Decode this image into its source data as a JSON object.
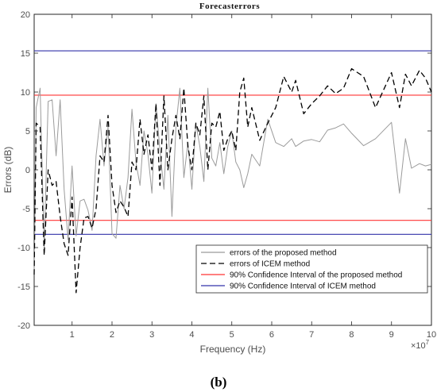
{
  "chart_data": {
    "type": "line",
    "title": "Forecasterrors",
    "xlabel": "Frequency (Hz)",
    "ylabel": "Errors (dB)",
    "x_exponent_label": "×10",
    "x_exponent_power": "7",
    "panel_label": "(b)",
    "xlim": [
      0.05,
      10
    ],
    "ylim": [
      -20,
      20
    ],
    "x_ticks": [
      1,
      2,
      3,
      4,
      5,
      6,
      7,
      8,
      9,
      10
    ],
    "x_tick_labels": [
      "1",
      "2",
      "3",
      "4",
      "5",
      "6",
      "7",
      "8",
      "9",
      "10"
    ],
    "y_ticks": [
      -20,
      -15,
      -10,
      -5,
      0,
      5,
      10,
      15,
      20
    ],
    "y_tick_labels": [
      "-20",
      "-15",
      "-10",
      "-5",
      "0",
      "5",
      "10",
      "15",
      "20"
    ],
    "grid": false,
    "legend_position": "bottom-right",
    "series": [
      {
        "name": "errors of the proposed method",
        "color": "#9b9b9b",
        "dash": "solid",
        "x": [
          0.05,
          0.1,
          0.2,
          0.3,
          0.4,
          0.5,
          0.6,
          0.7,
          0.8,
          0.9,
          1.0,
          1.1,
          1.2,
          1.3,
          1.4,
          1.5,
          1.6,
          1.7,
          1.8,
          1.9,
          2.0,
          2.1,
          2.2,
          2.3,
          2.4,
          2.5,
          2.6,
          2.7,
          2.8,
          2.9,
          3.0,
          3.1,
          3.2,
          3.3,
          3.4,
          3.5,
          3.6,
          3.7,
          3.8,
          3.9,
          4.0,
          4.1,
          4.2,
          4.3,
          4.4,
          4.5,
          4.6,
          4.7,
          4.8,
          4.9,
          5.0,
          5.1,
          5.2,
          5.3,
          5.4,
          5.5,
          5.7,
          5.9,
          6.1,
          6.3,
          6.5,
          6.6,
          6.8,
          7.0,
          7.2,
          7.4,
          7.6,
          7.8,
          8.0,
          8.3,
          8.6,
          9.0,
          9.2,
          9.35,
          9.5,
          9.7,
          9.85,
          10.0
        ],
        "y": [
          -13.5,
          8.0,
          10.5,
          -10.0,
          8.8,
          9.0,
          1.8,
          9.0,
          -2.5,
          -9.0,
          0.5,
          -8.5,
          -4.0,
          -3.8,
          -5.2,
          -7.8,
          1.8,
          6.5,
          0.5,
          5.5,
          -8.2,
          -8.8,
          -2.0,
          -5.0,
          -1.0,
          7.8,
          1.0,
          -2.0,
          5.0,
          2.0,
          -3.0,
          8.5,
          2.5,
          -2.5,
          7.0,
          -6.0,
          5.5,
          10.5,
          -1.0,
          3.5,
          -2.5,
          6.0,
          3.0,
          -1.5,
          10.5,
          1.5,
          0.5,
          3.5,
          -0.5,
          3.0,
          5.0,
          1.0,
          0.0,
          -2.3,
          -0.5,
          2.0,
          0.5,
          6.5,
          3.5,
          3.0,
          4.0,
          3.0,
          3.7,
          3.9,
          3.6,
          5.1,
          5.4,
          5.9,
          4.7,
          3.1,
          4.0,
          6.1,
          -3.0,
          4.0,
          0.2,
          0.8,
          0.5,
          0.7
        ]
      },
      {
        "name": "errors of ICEM method",
        "color": "#000000",
        "dash": "dashed",
        "x": [
          0.05,
          0.1,
          0.2,
          0.3,
          0.4,
          0.5,
          0.6,
          0.7,
          0.8,
          0.9,
          1.0,
          1.1,
          1.2,
          1.3,
          1.4,
          1.5,
          1.6,
          1.7,
          1.8,
          1.9,
          2.0,
          2.1,
          2.2,
          2.3,
          2.4,
          2.5,
          2.6,
          2.7,
          2.8,
          2.9,
          3.0,
          3.1,
          3.2,
          3.3,
          3.4,
          3.5,
          3.6,
          3.7,
          3.8,
          3.9,
          4.0,
          4.1,
          4.2,
          4.3,
          4.4,
          4.5,
          4.6,
          4.7,
          4.8,
          4.9,
          5.0,
          5.1,
          5.2,
          5.3,
          5.4,
          5.5,
          5.7,
          5.9,
          6.1,
          6.3,
          6.5,
          6.6,
          6.8,
          7.0,
          7.2,
          7.4,
          7.6,
          7.8,
          8.0,
          8.3,
          8.6,
          9.0,
          9.2,
          9.35,
          9.5,
          9.7,
          9.85,
          10.0
        ],
        "y": [
          -13.5,
          6.0,
          5.5,
          -11.0,
          0.0,
          -2.0,
          -1.5,
          -6.0,
          -9.5,
          -11.0,
          -3.5,
          -15.8,
          -10.0,
          -6.2,
          -6.0,
          -7.5,
          -5.0,
          1.8,
          1.0,
          7.0,
          -2.0,
          -5.5,
          -4.0,
          -4.8,
          -6.0,
          1.0,
          0.0,
          6.5,
          2.0,
          4.5,
          0.0,
          8.5,
          -2.0,
          9.5,
          0.0,
          4.0,
          7.0,
          4.0,
          10.5,
          3.0,
          0.0,
          6.0,
          4.5,
          9.5,
          0.0,
          6.0,
          5.5,
          7.5,
          2.5,
          4.0,
          5.0,
          2.5,
          10.0,
          11.8,
          5.5,
          8.0,
          3.8,
          6.0,
          8.0,
          12.0,
          10.0,
          11.5,
          7.2,
          8.5,
          9.5,
          10.8,
          9.8,
          10.5,
          13.0,
          12.0,
          8.0,
          12.5,
          8.0,
          12.3,
          10.8,
          12.8,
          11.8,
          10.0
        ]
      },
      {
        "name": "90% Confidence Interval of the proposed method",
        "color": "#ff3333",
        "dash": "solid",
        "hlines": [
          9.6,
          -6.5
        ]
      },
      {
        "name": "90% Confidence Interval of ICEM method",
        "color": "#3333aa",
        "dash": "solid",
        "hlines": [
          15.3,
          -8.3
        ]
      }
    ]
  }
}
